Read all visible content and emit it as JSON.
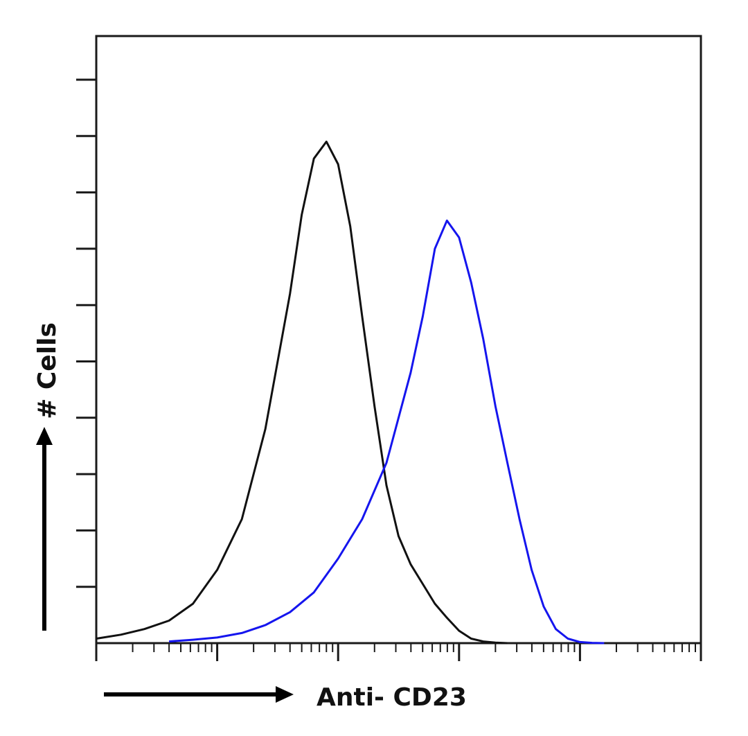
{
  "chart_data": {
    "type": "line",
    "title": "",
    "xlabel": "Anti- CD23",
    "ylabel": "# Cells",
    "x_scale": "log",
    "xlim": [
      1,
      100000
    ],
    "ylim": [
      0,
      100
    ],
    "y_ticks": [
      10,
      20,
      30,
      40,
      50,
      60,
      70,
      80,
      90,
      100
    ],
    "grid": false,
    "legend": "none",
    "series": [
      {
        "color": "#111111",
        "x": [
          1,
          1.6,
          2.5,
          4,
          6.3,
          10,
          16,
          25,
          40,
          50,
          63,
          80,
          100,
          126,
          158,
          200,
          251,
          316,
          398,
          501,
          631,
          794,
          1000,
          1259,
          1585,
          2000,
          2512
        ],
        "values": [
          0.8,
          1.5,
          2.5,
          4.0,
          7.0,
          13.0,
          22.0,
          38.0,
          62.0,
          76.0,
          86.0,
          89.0,
          85.0,
          74.0,
          58.0,
          42.0,
          28.0,
          19.0,
          14.0,
          10.5,
          7.0,
          4.5,
          2.2,
          0.8,
          0.3,
          0.1,
          0.0
        ]
      },
      {
        "color": "#1515ee",
        "x": [
          4,
          6.3,
          10,
          16,
          25,
          40,
          63,
          100,
          158,
          251,
          398,
          501,
          631,
          794,
          1000,
          1259,
          1585,
          2000,
          2512,
          3162,
          3981,
          5012,
          6310,
          7943,
          10000,
          12589,
          15849
        ],
        "values": [
          0.3,
          0.6,
          1.0,
          1.8,
          3.2,
          5.5,
          9.0,
          15.0,
          22.0,
          32.0,
          48.0,
          58.0,
          70.0,
          75.0,
          72.0,
          64.0,
          54.0,
          42.0,
          32.0,
          22.0,
          13.0,
          6.5,
          2.5,
          0.8,
          0.2,
          0.05,
          0.0
        ]
      }
    ]
  }
}
